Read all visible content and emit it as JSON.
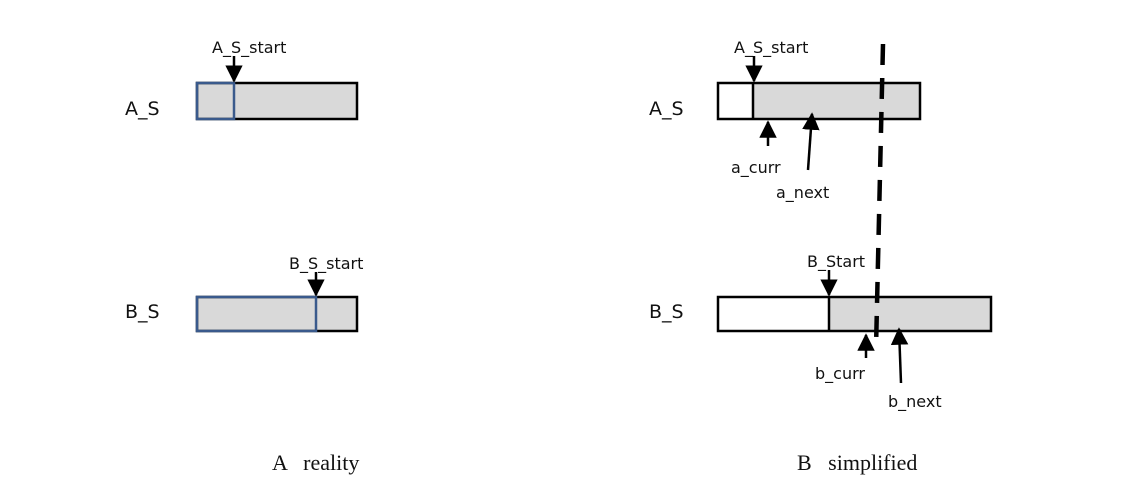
{
  "colors": {
    "shaded_fill": "#d9d9d9",
    "outline": "#000000",
    "blue_outline": "#3a5a8c",
    "background": "#ffffff"
  },
  "panel_a": {
    "caption": "A   reality",
    "row_a_label": "A_S",
    "row_b_label": "B_S",
    "a_start_label": "A_S_start",
    "b_start_label": "B_S_start"
  },
  "panel_b": {
    "caption": "B   simplified",
    "row_a_label": "A_S",
    "row_b_label": "B_S",
    "a_start_label": "A_S_start",
    "b_start_label": "B_Start",
    "a_curr_label": "a_curr",
    "a_next_label": "a_next",
    "b_curr_label": "b_curr",
    "b_next_label": "b_next"
  }
}
